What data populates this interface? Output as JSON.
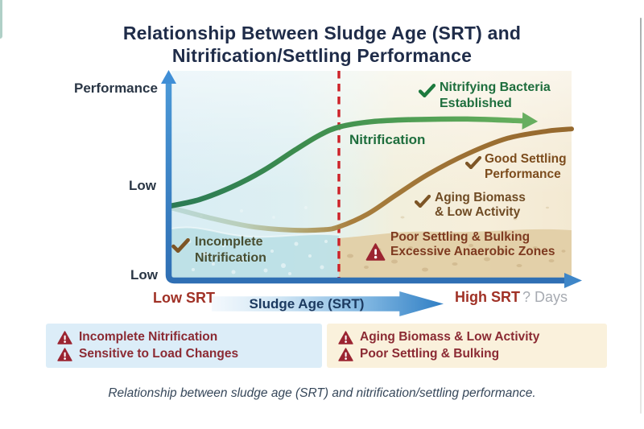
{
  "figure": {
    "title_line1": "Relationship Between Sludge Age (SRT) and",
    "title_line2": "Nitrification/Settling Performance",
    "caption": "Relationship between sludge age (SRT) and nitrification/settling performance."
  },
  "axes": {
    "y_label": "Performance",
    "y_tick_upper": "Low",
    "y_tick_lower": "Low",
    "x_arrow_label": "Sludge Age (SRT)",
    "x_left_label": "Low SRT",
    "x_right_label": "High SRT",
    "x_unit_label": "? Days"
  },
  "plot_annotations": {
    "nitrifying_line1": "Nitrifying Bacteria",
    "nitrifying_line2": "Established",
    "nitrification_curve": "Nitrification",
    "good_settling_line1": "Good Settling",
    "good_settling_line2": "Performance",
    "aging_line1": "Aging Biomass",
    "aging_line2": "& Low Activity",
    "poor_line1": "Poor Settling & Bulking",
    "poor_line2": "Excessive Anaerobic Zones",
    "incomplete_line1": "Incomplete",
    "incomplete_line2": "Nitrification"
  },
  "callout_boxes": {
    "low_srt": {
      "item1": "Incomplete Nitrification",
      "item2": "Sensitive to Load Changes"
    },
    "high_srt": {
      "item1": "Aging Biomass & Low Activity",
      "item2": "Poor Settling & Bulking"
    }
  },
  "colors": {
    "title_navy": "#1f2c49",
    "axis_blue": "#3d86c8",
    "dashed_red": "#cd2128",
    "green_curve": "#3c8c4e",
    "green_text": "#1e6e3d",
    "brown_curve": "#a07434",
    "brown_text": "#7c4c1d",
    "maroon_text": "#8b2a33",
    "warning_red": "#9b2431",
    "srt_label_red": "#a03126",
    "box_blue_bg": "#dcedf8",
    "box_tan_bg": "#faf1dc",
    "water_blue": "#b7dde4",
    "sand_tan": "#e2cfa6"
  },
  "chart_data": {
    "type": "line",
    "title": "Relationship Between Sludge Age (SRT) and Nitrification/Settling Performance",
    "xlabel": "Sludge Age (SRT)",
    "ylabel": "Performance",
    "x_axis_qualitative": [
      "Low SRT",
      "High SRT"
    ],
    "x_unit": "Days",
    "y_axis_qualitative": [
      "Low"
    ],
    "grid": false,
    "legend_position": "inline-annotations",
    "reference_line": {
      "style": "vertical-dashed",
      "color": "#cd2128",
      "x_norm": 0.42
    },
    "series": [
      {
        "name": "Nitrification",
        "color": "#3c8c4e",
        "style": "s-curve rising to plateau, arrow end",
        "x_norm": [
          0,
          0.07,
          0.15,
          0.23,
          0.31,
          0.37,
          0.42,
          0.5,
          0.6,
          0.74,
          0.89
        ],
        "y_norm": [
          0.35,
          0.38,
          0.44,
          0.52,
          0.62,
          0.69,
          0.73,
          0.755,
          0.765,
          0.768,
          0.758
        ]
      },
      {
        "name": "Settling Performance",
        "color": "#a07434",
        "style": "slight dip at low SRT then s-curve rising",
        "x_norm": [
          0,
          0.1,
          0.2,
          0.3,
          0.38,
          0.42,
          0.49,
          0.56,
          0.64,
          0.74,
          0.84,
          0.94,
          1.0
        ],
        "y_norm": [
          0.34,
          0.29,
          0.25,
          0.233,
          0.235,
          0.25,
          0.31,
          0.4,
          0.5,
          0.6,
          0.675,
          0.71,
          0.72
        ]
      }
    ]
  }
}
